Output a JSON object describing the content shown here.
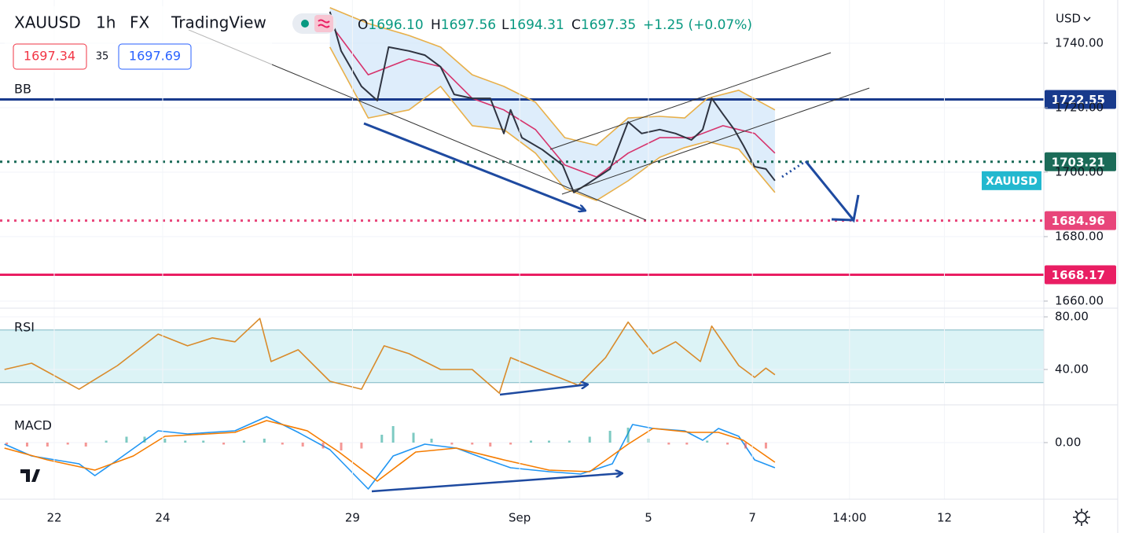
{
  "header": {
    "symbol": "XAUUSD",
    "interval": "1h",
    "exchange": "FX",
    "source": "TradingView",
    "ohlc": [
      [
        "O",
        "1696.10"
      ],
      [
        "H",
        "1697.56"
      ],
      [
        "L",
        "1694.31"
      ],
      [
        "C",
        "1697.35"
      ]
    ],
    "change": "+1.25 (+0.07%)",
    "bid": "1697.34",
    "spread": "35",
    "ask": "1697.69",
    "currency": "USD"
  },
  "chart_data": [
    {
      "type": "line",
      "indicator": "BB",
      "xlim": [
        0,
        462
      ],
      "ylim": [
        1657.8,
        1753.4
      ],
      "yticks": [
        {
          "value": 1660,
          "label": "1660.00"
        },
        {
          "value": 1680,
          "label": "1680.00"
        },
        {
          "value": 1700,
          "label": "1700.00"
        },
        {
          "value": 1720,
          "label": "1720.00"
        },
        {
          "value": 1740,
          "label": "1740.00"
        }
      ],
      "band_fill": "#d6e8fa",
      "series": [
        {
          "name": "XAUUSD",
          "color": "#2f3441",
          "tag_color": "#22b8cf",
          "x": [
            146,
            151,
            160,
            167,
            172,
            181,
            188,
            195,
            201,
            209,
            217,
            223,
            226,
            231,
            240,
            249,
            254,
            261,
            270,
            278,
            284,
            292,
            299,
            306,
            311,
            315,
            320,
            325,
            329,
            334,
            339,
            343
          ],
          "values": [
            1749.8,
            1737.6,
            1726.6,
            1722.2,
            1738.8,
            1737.6,
            1736.3,
            1732.7,
            1724.1,
            1722.9,
            1722.9,
            1712,
            1719.3,
            1710.7,
            1707,
            1702.2,
            1693.7,
            1696.8,
            1701,
            1715.6,
            1712,
            1713.2,
            1712,
            1710,
            1713.2,
            1722.9,
            1718,
            1713.2,
            1708.3,
            1701.7,
            1701,
            1697.35
          ]
        },
        {
          "color": "#e8b04a",
          "x": [
            146,
            163,
            181,
            195,
            209,
            223,
            237,
            250,
            264,
            278,
            292,
            303,
            313,
            327,
            343
          ],
          "values": [
            1751,
            1746.1,
            1742.4,
            1738.8,
            1730.2,
            1726.6,
            1721.7,
            1710.7,
            1708.3,
            1716.8,
            1717.3,
            1716.8,
            1722.9,
            1725.4,
            1719.3
          ]
        },
        {
          "color": "#e8b04a",
          "x": [
            146,
            163,
            181,
            195,
            209,
            223,
            237,
            250,
            264,
            278,
            292,
            303,
            313,
            327,
            343
          ],
          "values": [
            1738.8,
            1716.8,
            1719.3,
            1726.6,
            1714.4,
            1713.2,
            1705.9,
            1694.9,
            1691.2,
            1697.3,
            1704.6,
            1707.6,
            1709.5,
            1707.1,
            1693.7
          ]
        },
        {
          "color": "#d6336c",
          "x": [
            146,
            163,
            181,
            195,
            209,
            223,
            237,
            250,
            264,
            278,
            292,
            306,
            320,
            334,
            343
          ],
          "values": [
            1746.1,
            1730.2,
            1735.1,
            1732.7,
            1722.9,
            1719.3,
            1713.2,
            1702.2,
            1698.5,
            1705.9,
            1710.7,
            1710.7,
            1714.4,
            1712,
            1705.9
          ]
        }
      ],
      "hlines": [
        {
          "value": 1722.55,
          "color": "#183a8c",
          "style": "solid"
        },
        {
          "value": 1703.21,
          "color": "#1b6b58",
          "style": "dotted"
        },
        {
          "value": 1684.96,
          "color": "#e8457a",
          "style": "dotted"
        },
        {
          "value": 1668.17,
          "color": "#e91e63",
          "style": "solid"
        }
      ]
    },
    {
      "type": "line",
      "title": "RSI",
      "xlim": [
        0,
        462
      ],
      "ylim": [
        13.1,
        86.6
      ],
      "yticks": [
        {
          "value": 40,
          "label": "40.00"
        },
        {
          "value": 80,
          "label": "80.00"
        }
      ],
      "band": [
        30,
        70
      ],
      "band_color": "#dcf3f6",
      "series": [
        {
          "color": "#d98b2b",
          "x": [
            2,
            14,
            35,
            52,
            70,
            83,
            94,
            104,
            115,
            120,
            132,
            146,
            160,
            170,
            181,
            195,
            209,
            221,
            226,
            243,
            256,
            268,
            278,
            289,
            299,
            310,
            315,
            327,
            334,
            339,
            343
          ],
          "values": [
            40,
            44.8,
            25,
            43,
            66.9,
            58,
            64,
            61,
            78.8,
            46,
            55,
            31,
            25,
            58,
            52,
            40,
            40,
            22,
            49,
            37,
            28,
            49,
            76,
            52,
            61,
            46,
            73,
            43,
            34,
            41,
            36
          ]
        }
      ]
    },
    {
      "type": "line",
      "title": "MACD",
      "xlim": [
        0,
        462
      ],
      "ylim": [
        -14.4,
        9.6
      ],
      "yticks": [
        {
          "value": 0,
          "label": "0.00"
        }
      ],
      "xticks": [
        {
          "value": 24,
          "label": "22"
        },
        {
          "value": 72,
          "label": "24"
        },
        {
          "value": 156,
          "label": "29"
        },
        {
          "value": 230,
          "label": "Sep"
        },
        {
          "value": 287,
          "label": "5"
        },
        {
          "value": 333,
          "label": "7"
        },
        {
          "value": 376,
          "label": "14:00"
        },
        {
          "value": 418,
          "label": "12"
        }
      ],
      "series": [
        {
          "type": "bar",
          "color": "#26a69a",
          "negative_color": "#ef5350",
          "x": [
            3,
            12,
            21,
            30,
            38,
            47,
            56,
            64,
            73,
            82,
            90,
            99,
            108,
            117,
            125,
            134,
            143,
            151,
            160,
            169,
            174,
            183,
            191,
            200,
            209,
            217,
            226,
            235,
            243,
            252,
            261,
            270,
            278,
            287,
            296,
            304,
            313,
            322,
            330,
            339
          ],
          "values": [
            -0.5,
            -1,
            -1,
            -0.5,
            -1,
            0.5,
            1.5,
            1.5,
            1,
            0.5,
            0.5,
            -0.5,
            0.5,
            1,
            -0.5,
            -1,
            -1.5,
            -2,
            -1.5,
            2,
            4.2,
            2.5,
            1,
            -0.5,
            -0.5,
            -1,
            -0.5,
            0.5,
            0.5,
            0.5,
            1.5,
            3,
            3.8,
            1,
            -0.5,
            -0.5,
            0.5,
            -0.5,
            -1.5,
            -1.5
          ]
        },
        {
          "color": "#2196f3",
          "x": [
            2,
            14,
            35,
            42,
            52,
            70,
            83,
            104,
            118,
            132,
            146,
            163,
            174,
            188,
            202,
            216,
            226,
            243,
            257,
            271,
            280,
            289,
            303,
            311,
            318,
            327,
            334,
            343
          ],
          "values": [
            -0.4,
            -3.4,
            -5.4,
            -8.4,
            -4.4,
            3,
            2.2,
            3,
            6.6,
            2.6,
            -1.8,
            -11.8,
            -3.4,
            -0.4,
            -1.4,
            -4.4,
            -6.4,
            -7.4,
            -8,
            -5.4,
            4.6,
            3.6,
            3,
            0.6,
            3.6,
            1.6,
            -4.4,
            -6.4
          ]
        },
        {
          "color": "#f57c00",
          "x": [
            2,
            21,
            42,
            59,
            73,
            104,
            118,
            136,
            150,
            167,
            184,
            202,
            223,
            243,
            261,
            278,
            289,
            306,
            318,
            329,
            343
          ],
          "values": [
            -1.4,
            -4.4,
            -7,
            -3.4,
            1.6,
            2.6,
            5.6,
            3,
            -2.4,
            -9.8,
            -2.4,
            -1.4,
            -4.4,
            -7,
            -7.4,
            -0.4,
            3.6,
            2.6,
            2.6,
            0.6,
            -5
          ]
        }
      ]
    }
  ]
}
